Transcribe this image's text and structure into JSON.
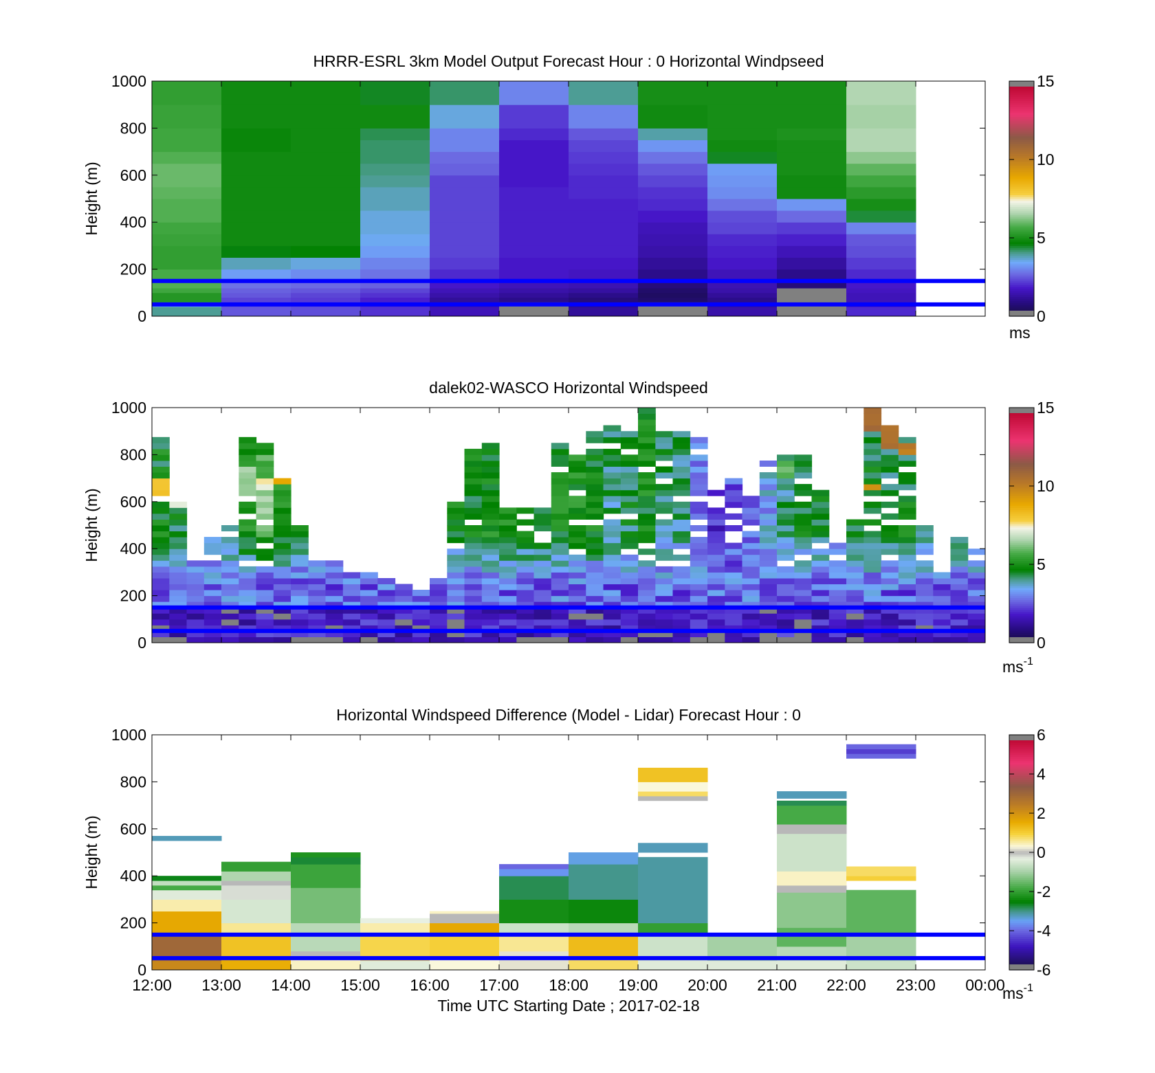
{
  "figure": {
    "xlabel": "Time UTC  Starting Date ; 2017-02-18",
    "xticks": [
      "12:00",
      "13:00",
      "14:00",
      "15:00",
      "16:00",
      "17:00",
      "18:00",
      "19:00",
      "20:00",
      "21:00",
      "22:00",
      "23:00",
      "00:00"
    ],
    "horizontal_lines": {
      "color": "#0000ff",
      "heights_m": [
        150,
        50
      ]
    }
  },
  "chart_data": [
    {
      "type": "heatmap",
      "title": "HRRR-ESRL 3km Model Output   Forecast Hour : 0 Horizontal Windpseed",
      "ylabel": "Height (m)",
      "ylim": [
        0,
        1000
      ],
      "yticks": [
        "0",
        "200",
        "400",
        "600",
        "800",
        "1000"
      ],
      "clim": [
        0,
        15
      ],
      "colorbar_ticks": [
        "0",
        "5",
        "10",
        "15"
      ],
      "colorbar_unit": "ms",
      "colormap": "windspeed",
      "x_hours": [
        12,
        13,
        14,
        15,
        16,
        17,
        18,
        19,
        20,
        21,
        22
      ],
      "level_edges_m": [
        0,
        40,
        60,
        80,
        100,
        120,
        150,
        200,
        250,
        300,
        350,
        400,
        450,
        500,
        550,
        600,
        650,
        700,
        750,
        800,
        900,
        1000
      ],
      "values": [
        [
          4.0,
          3.6,
          5.2,
          5.2,
          5.6,
          5.8,
          5.7,
          5.4,
          5.4,
          5.5,
          5.6,
          5.8,
          5.8,
          5.9,
          6.0,
          6.0,
          5.8,
          5.6,
          5.6,
          5.5,
          5.4
        ],
        [
          2.5,
          2.4,
          2.3,
          2.5,
          2.6,
          2.8,
          3.3,
          3.8,
          4.6,
          4.9,
          4.9,
          4.9,
          4.9,
          4.9,
          4.9,
          4.9,
          4.9,
          4.8,
          4.8,
          4.9,
          4.9
        ],
        [
          2.4,
          2.3,
          2.2,
          2.3,
          2.5,
          2.7,
          3.1,
          3.6,
          4.7,
          4.9,
          4.9,
          4.9,
          4.9,
          4.9,
          4.9,
          4.9,
          4.9,
          4.9,
          4.9,
          4.9,
          4.9
        ],
        [
          2.1,
          2.0,
          1.9,
          2.1,
          2.3,
          2.6,
          2.8,
          3.0,
          3.3,
          3.5,
          3.6,
          3.6,
          3.8,
          3.8,
          4.0,
          4.1,
          4.2,
          4.2,
          4.3,
          4.9,
          4.5
        ],
        [
          1.6,
          1.4,
          1.2,
          1.4,
          1.6,
          1.8,
          2.0,
          2.2,
          2.3,
          2.3,
          2.3,
          2.3,
          2.3,
          2.3,
          2.3,
          2.6,
          2.7,
          3.0,
          3.0,
          3.6,
          4.2
        ],
        [
          -1,
          -1,
          1.0,
          1.2,
          1.4,
          1.6,
          1.8,
          1.8,
          1.9,
          1.9,
          1.9,
          1.9,
          1.9,
          1.9,
          1.8,
          1.8,
          1.8,
          1.8,
          2.0,
          2.2,
          3.0
        ],
        [
          1.2,
          1.0,
          0.8,
          1.0,
          1.3,
          1.5,
          1.7,
          1.8,
          1.9,
          1.9,
          1.9,
          1.9,
          1.9,
          2.0,
          2.0,
          2.1,
          2.2,
          2.3,
          2.5,
          3.0,
          4.0
        ],
        [
          -1,
          -1,
          0.6,
          0.5,
          0.6,
          0.8,
          1.0,
          1.2,
          1.4,
          1.5,
          1.6,
          1.8,
          2.0,
          2.1,
          2.3,
          2.5,
          2.8,
          3.2,
          3.9,
          4.9,
          5.0
        ],
        [
          1.4,
          1.2,
          1.0,
          1.2,
          1.4,
          1.5,
          1.6,
          1.8,
          1.9,
          2.0,
          2.3,
          2.4,
          2.8,
          3.1,
          3.2,
          3.3,
          4.5,
          4.9,
          5.0,
          5.0,
          5.0
        ],
        [
          -1,
          -1,
          -1,
          -1,
          -1,
          0.8,
          1.0,
          1.3,
          1.6,
          1.9,
          2.2,
          2.7,
          3.2,
          4.9,
          4.9,
          5.0,
          5.0,
          5.0,
          5.1,
          5.0,
          5.0
        ],
        [
          2.0,
          1.7,
          1.6,
          1.6,
          1.7,
          1.8,
          2.0,
          2.2,
          2.4,
          2.5,
          3.0,
          4.4,
          5.0,
          5.3,
          5.6,
          5.9,
          6.3,
          6.6,
          6.6,
          6.5,
          6.6
        ]
      ]
    },
    {
      "type": "heatmap",
      "title": "dalek02-WASCO  Horizontal Windspeed",
      "ylabel": "Height (m)",
      "ylim": [
        0,
        1000
      ],
      "yticks": [
        "0",
        "200",
        "400",
        "600",
        "800",
        "1000"
      ],
      "clim": [
        0,
        15
      ],
      "colorbar_ticks": [
        "0",
        "5",
        "10",
        "15"
      ],
      "colorbar_unit": "ms",
      "colorbar_unit_superscript": "-1",
      "colormap": "windspeed",
      "time_step_hours": 0.25,
      "height_step_m": 25,
      "columns": [
        {
          "h": 12.0,
          "top": 860,
          "mean": 4.8,
          "bands": [
            [
              620,
              680,
              8.3
            ]
          ]
        },
        {
          "h": 12.25,
          "top": 600,
          "mean": 4.6,
          "bands": [
            [
              560,
              600,
              7.4
            ]
          ]
        },
        {
          "h": 12.5,
          "top": 350,
          "mean": 4.4
        },
        {
          "h": 12.75,
          "top": 450,
          "mean": 4.2
        },
        {
          "h": 13.0,
          "top": 480,
          "mean": 4.4
        },
        {
          "h": 13.25,
          "top": 860,
          "mean": 5.2,
          "bands": [
            [
              600,
              740,
              6.4
            ]
          ]
        },
        {
          "h": 13.5,
          "top": 850,
          "mean": 5.6,
          "bands": [
            [
              640,
              700,
              7.4
            ],
            [
              500,
              640,
              6.5
            ]
          ]
        },
        {
          "h": 13.75,
          "top": 690,
          "mean": 5.1,
          "bands": [
            [
              670,
              700,
              9.0
            ]
          ]
        },
        {
          "h": 14.0,
          "top": 500,
          "mean": 4.6
        },
        {
          "h": 14.25,
          "top": 330,
          "mean": 4.4
        },
        {
          "h": 14.5,
          "top": 340,
          "mean": 4.2
        },
        {
          "h": 14.75,
          "top": 300,
          "mean": 4.0
        },
        {
          "h": 15.0,
          "top": 280,
          "mean": 2.2
        },
        {
          "h": 15.25,
          "top": 260,
          "mean": 2.0
        },
        {
          "h": 15.5,
          "top": 250,
          "mean": 1.8
        },
        {
          "h": 15.75,
          "top": 220,
          "mean": 1.6
        },
        {
          "h": 16.0,
          "top": 270,
          "mean": 1.8
        },
        {
          "h": 16.25,
          "top": 600,
          "mean": 4.8
        },
        {
          "h": 16.5,
          "top": 820,
          "mean": 4.9
        },
        {
          "h": 16.75,
          "top": 830,
          "mean": 5.0
        },
        {
          "h": 17.0,
          "top": 560,
          "mean": 4.9
        },
        {
          "h": 17.25,
          "top": 560,
          "mean": 4.9
        },
        {
          "h": 17.5,
          "top": 560,
          "mean": 4.9
        },
        {
          "h": 17.75,
          "top": 840,
          "mean": 4.9
        },
        {
          "h": 18.0,
          "top": 820,
          "mean": 5.0
        },
        {
          "h": 18.25,
          "top": 880,
          "mean": 4.9
        },
        {
          "h": 18.5,
          "top": 920,
          "mean": 4.2
        },
        {
          "h": 18.75,
          "top": 900,
          "mean": 4.5
        },
        {
          "h": 19.0,
          "top": 1000,
          "mean": 4.9
        },
        {
          "h": 19.25,
          "top": 880,
          "mean": 4.3
        },
        {
          "h": 19.5,
          "top": 880,
          "mean": 4.2
        },
        {
          "h": 19.75,
          "top": 860,
          "mean": 3.0
        },
        {
          "h": 20.0,
          "top": 650,
          "mean": 2.2
        },
        {
          "h": 20.25,
          "top": 700,
          "mean": 2.6
        },
        {
          "h": 20.5,
          "top": 620,
          "mean": 2.8
        },
        {
          "h": 20.75,
          "top": 760,
          "mean": 3.4
        },
        {
          "h": 21.0,
          "top": 800,
          "mean": 4.2,
          "bands": [
            [
              680,
              760,
              6.0
            ]
          ]
        },
        {
          "h": 21.25,
          "top": 780,
          "mean": 4.6
        },
        {
          "h": 21.5,
          "top": 640,
          "mean": 4.8
        },
        {
          "h": 21.75,
          "top": 440,
          "mean": 3.6
        },
        {
          "h": 22.0,
          "top": 510,
          "mean": 4.6
        },
        {
          "h": 22.25,
          "top": 990,
          "mean": 4.6,
          "bands": [
            [
              900,
              990,
              10.8
            ],
            [
              640,
              660,
              9.3
            ]
          ]
        },
        {
          "h": 22.5,
          "top": 920,
          "mean": 4.6,
          "bands": [
            [
              820,
              920,
              10.5
            ]
          ]
        },
        {
          "h": 22.75,
          "top": 860,
          "mean": 4.7,
          "bands": [
            [
              790,
              830,
              10.2
            ]
          ]
        },
        {
          "h": 23.0,
          "top": 500,
          "mean": 4.6
        },
        {
          "h": 23.25,
          "top": 280,
          "mean": 4.4
        },
        {
          "h": 23.5,
          "top": 440,
          "mean": 4.4
        },
        {
          "h": 23.75,
          "top": 400,
          "mean": 4.5
        }
      ]
    },
    {
      "type": "heatmap",
      "title": "Horizontal Windspeed Difference (Model - Lidar) Forecast Hour : 0",
      "ylabel": "Height (m)",
      "ylim": [
        0,
        1000
      ],
      "yticks": [
        "0",
        "200",
        "400",
        "600",
        "800",
        "1000"
      ],
      "clim": [
        -6,
        6
      ],
      "colorbar_ticks": [
        "-6",
        "-4",
        "-2",
        "0",
        "2",
        "4",
        "6"
      ],
      "colorbar_unit": "ms",
      "colorbar_unit_superscript": "-1",
      "colormap": "difference",
      "x_hours": [
        12,
        13,
        14,
        15,
        16,
        17,
        18,
        19,
        20,
        21,
        22
      ],
      "columns": [
        {
          "h": 12,
          "segments": [
            [
              0,
              40,
              2.2
            ],
            [
              40,
              150,
              3.0
            ],
            [
              150,
              250,
              1.6
            ],
            [
              250,
              300,
              0.5
            ],
            [
              300,
              340,
              -0.4
            ],
            [
              340,
              360,
              -1.8
            ],
            [
              360,
              380,
              -0.7
            ],
            [
              380,
              400,
              -2.6
            ],
            [
              550,
              570,
              -3.2
            ]
          ]
        },
        {
          "h": 13,
          "segments": [
            [
              0,
              50,
              1.5
            ],
            [
              50,
              150,
              1.2
            ],
            [
              150,
              200,
              0.6
            ],
            [
              200,
              300,
              -0.5
            ],
            [
              300,
              360,
              -0.2
            ],
            [
              360,
              380,
              0.0
            ],
            [
              380,
              420,
              -0.9
            ],
            [
              420,
              460,
              -2.0
            ]
          ]
        },
        {
          "h": 14,
          "segments": [
            [
              0,
              60,
              0.4
            ],
            [
              60,
              80,
              0.0
            ],
            [
              80,
              200,
              -0.8
            ],
            [
              200,
              350,
              -1.4
            ],
            [
              350,
              450,
              -1.9
            ],
            [
              450,
              480,
              -2.7
            ],
            [
              480,
              500,
              -2.2
            ]
          ]
        },
        {
          "h": 15,
          "segments": [
            [
              0,
              40,
              -0.4
            ],
            [
              40,
              150,
              0.9
            ],
            [
              150,
              200,
              0.5
            ],
            [
              200,
              220,
              -0.3
            ]
          ]
        },
        {
          "h": 16,
          "segments": [
            [
              0,
              60,
              0.3
            ],
            [
              60,
              150,
              1.0
            ],
            [
              150,
              200,
              1.6
            ],
            [
              200,
              240,
              0.0
            ],
            [
              240,
              250,
              0.4
            ]
          ]
        },
        {
          "h": 17,
          "segments": [
            [
              0,
              80,
              0.2
            ],
            [
              80,
              160,
              0.6
            ],
            [
              160,
              200,
              -0.6
            ],
            [
              200,
              300,
              -2.3
            ],
            [
              300,
              400,
              -2.8
            ],
            [
              400,
              430,
              -3.6
            ],
            [
              430,
              450,
              -4.0
            ]
          ]
        },
        {
          "h": 18,
          "segments": [
            [
              0,
              60,
              0.8
            ],
            [
              60,
              150,
              1.3
            ],
            [
              150,
              200,
              -0.8
            ],
            [
              200,
              300,
              -2.4
            ],
            [
              300,
              450,
              -3.0
            ],
            [
              450,
              500,
              -3.4
            ]
          ]
        },
        {
          "h": 19,
          "segments": [
            [
              0,
              40,
              -0.4
            ],
            [
              40,
              150,
              -0.6
            ],
            [
              150,
              200,
              -2.0
            ],
            [
              200,
              480,
              -3.1
            ],
            [
              500,
              540,
              -3.2
            ],
            [
              720,
              740,
              0.0
            ],
            [
              740,
              760,
              0.8
            ],
            [
              760,
              800,
              0.3
            ],
            [
              800,
              860,
              1.2
            ]
          ]
        },
        {
          "h": 20,
          "segments": [
            [
              0,
              40,
              -0.4
            ],
            [
              40,
              150,
              -1.0
            ]
          ]
        },
        {
          "h": 21,
          "segments": [
            [
              0,
              40,
              -0.4
            ],
            [
              40,
              100,
              -0.8
            ],
            [
              100,
              180,
              -1.6
            ],
            [
              180,
              330,
              -1.2
            ],
            [
              330,
              360,
              0.0
            ],
            [
              360,
              420,
              0.4
            ],
            [
              420,
              580,
              -0.6
            ],
            [
              580,
              620,
              0.0
            ],
            [
              620,
              700,
              -1.8
            ],
            [
              700,
              720,
              -2.8
            ],
            [
              730,
              760,
              -3.2
            ]
          ]
        },
        {
          "h": 22,
          "segments": [
            [
              0,
              40,
              -0.6
            ],
            [
              40,
              150,
              -1.0
            ],
            [
              150,
              340,
              -1.6
            ],
            [
              380,
              400,
              1.0
            ],
            [
              400,
              440,
              0.8
            ],
            [
              900,
              920,
              -4.0
            ],
            [
              920,
              940,
              -4.4
            ],
            [
              940,
              960,
              -4.0
            ]
          ]
        }
      ]
    }
  ]
}
